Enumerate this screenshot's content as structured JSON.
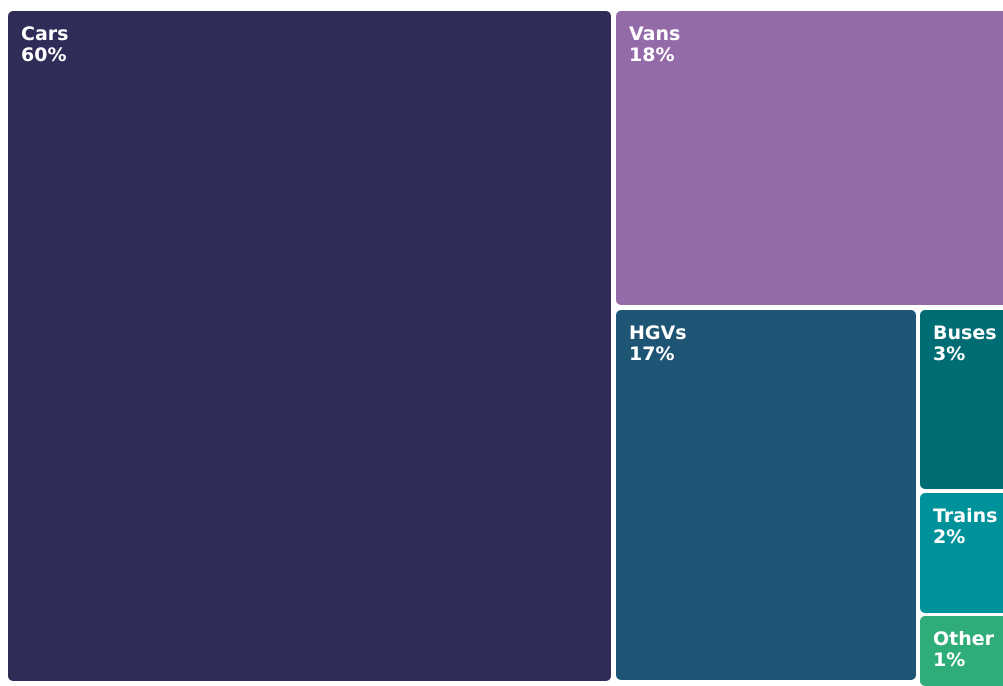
{
  "chart_data": {
    "type": "treemap",
    "title": "",
    "unit": "%",
    "items": [
      {
        "name": "Cars",
        "value": 60,
        "label": "60%",
        "color": "#2f2c58"
      },
      {
        "name": "Vans",
        "value": 18,
        "label": "18%",
        "color": "#946ba9"
      },
      {
        "name": "HGVs",
        "value": 17,
        "label": "17%",
        "color": "#1f5574"
      },
      {
        "name": "Buses",
        "value": 3,
        "label": "3%",
        "color": "#006c74"
      },
      {
        "name": "Trains",
        "value": 2,
        "label": "2%",
        "color": "#00929b"
      },
      {
        "name": "Other",
        "value": 1,
        "label": "1%",
        "color": "#2fad78"
      }
    ]
  }
}
